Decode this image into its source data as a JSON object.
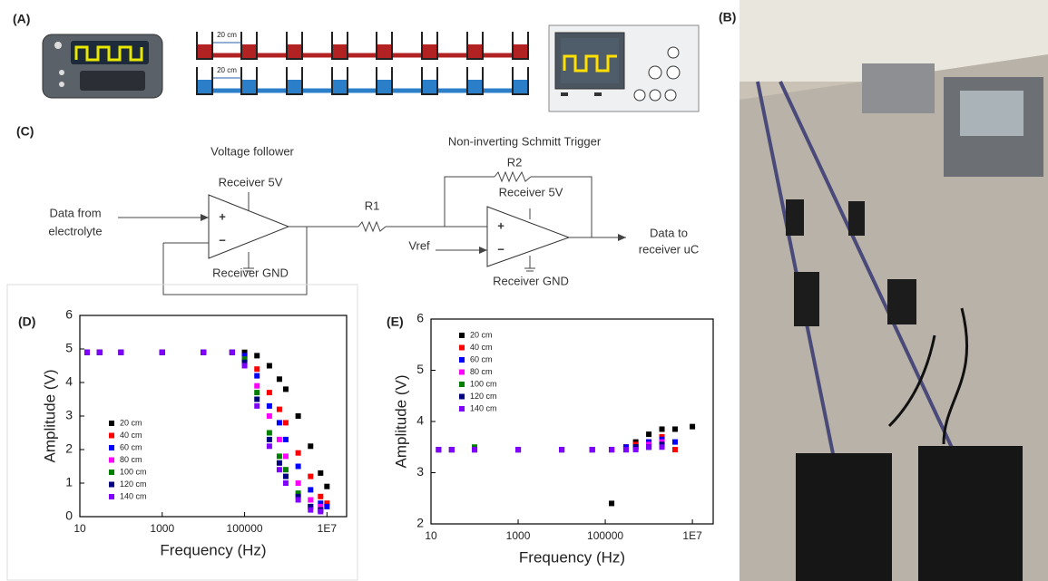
{
  "panel_labels": [
    "(A)",
    "(B)",
    "(C)",
    "(D)",
    "(E)"
  ],
  "panel_a": {
    "distance_labels": [
      "20 cm",
      "20 cm"
    ]
  },
  "circuit": {
    "voltage_follower": "Voltage follower",
    "schmitt": "Non-inverting Schmitt Trigger",
    "input": [
      "Data from",
      "electrolyte"
    ],
    "output": [
      "Data to",
      "receiver uC"
    ],
    "receiver_5v_1": "Receiver 5V",
    "receiver_gnd_1": "Receiver GND",
    "r1": "R1",
    "r2": "R2",
    "receiver_5v_2": "Receiver 5V",
    "vref": "Vref",
    "receiver_gnd_2": "Receiver GND",
    "signs": [
      "+",
      "−"
    ]
  },
  "chart_data": [
    {
      "type": "scatter",
      "x_label": "Frequency (Hz)",
      "y_label": "Amplitude (V)",
      "xscale": "log",
      "legend": "lower left",
      "xlim": [
        10,
        30000000
      ],
      "ylim": [
        0,
        6
      ],
      "xticks": [
        10,
        1000,
        100000,
        {
          "value": 10000000,
          "label": "1E7"
        }
      ],
      "yticks": [
        0,
        1,
        2,
        3,
        4,
        5,
        6
      ],
      "x": [
        15,
        30,
        100,
        1000,
        10000,
        50000,
        100000,
        200000,
        400000,
        700000,
        1000000,
        2000000,
        4000000,
        7000000,
        10000000
      ],
      "series": [
        {
          "name": "20 cm",
          "color": "#000000",
          "values": [
            4.9,
            4.9,
            4.9,
            4.9,
            4.9,
            4.9,
            4.9,
            4.8,
            4.5,
            4.1,
            3.8,
            3.0,
            2.1,
            1.3,
            0.9
          ]
        },
        {
          "name": "40 cm",
          "color": "#ff0000",
          "values": [
            4.9,
            4.9,
            4.9,
            4.9,
            4.9,
            4.9,
            4.8,
            4.4,
            3.7,
            3.2,
            2.8,
            1.9,
            1.2,
            0.6,
            0.4
          ]
        },
        {
          "name": "60 cm",
          "color": "#0000ff",
          "values": [
            4.9,
            4.9,
            4.9,
            4.9,
            4.9,
            4.9,
            4.8,
            4.2,
            3.3,
            2.8,
            2.3,
            1.5,
            0.8,
            0.4,
            0.3
          ]
        },
        {
          "name": "80 cm",
          "color": "#ff00ff",
          "values": [
            4.9,
            4.9,
            4.9,
            4.9,
            4.9,
            4.9,
            4.7,
            3.9,
            3.0,
            2.3,
            1.8,
            1.0,
            0.5,
            0.3,
            null
          ]
        },
        {
          "name": "100 cm",
          "color": "#008000",
          "values": [
            4.9,
            4.9,
            4.9,
            4.9,
            4.9,
            4.9,
            4.7,
            3.7,
            2.5,
            1.8,
            1.4,
            0.7,
            0.3,
            0.2,
            null
          ]
        },
        {
          "name": "120 cm",
          "color": "#000080",
          "values": [
            4.9,
            4.9,
            4.9,
            4.9,
            4.9,
            4.9,
            4.6,
            3.5,
            2.3,
            1.6,
            1.2,
            0.6,
            0.3,
            0.2,
            null
          ]
        },
        {
          "name": "140 cm",
          "color": "#8000ff",
          "values": [
            4.9,
            4.9,
            4.9,
            4.9,
            4.9,
            4.9,
            4.5,
            3.3,
            2.1,
            1.4,
            1.0,
            0.5,
            0.2,
            0.15,
            null
          ]
        }
      ]
    },
    {
      "type": "scatter",
      "x_label": "Frequency (Hz)",
      "y_label": "Amplitude (V)",
      "xscale": "log",
      "legend": "upper left",
      "xlim": [
        10,
        30000000
      ],
      "ylim": [
        2,
        6
      ],
      "xticks": [
        10,
        1000,
        100000,
        {
          "value": 10000000,
          "label": "1E7"
        }
      ],
      "yticks": [
        2,
        3,
        4,
        5,
        6
      ],
      "x": [
        15,
        30,
        100,
        1000,
        10000,
        50000,
        140000,
        300000,
        500000,
        1000000,
        2000000,
        4000000,
        10000000
      ],
      "series": [
        {
          "name": "20 cm",
          "color": "#000000",
          "values": [
            3.45,
            3.45,
            3.45,
            3.45,
            3.45,
            3.45,
            2.4,
            3.5,
            3.6,
            3.75,
            3.85,
            3.85,
            3.9
          ]
        },
        {
          "name": "40 cm",
          "color": "#ff0000",
          "values": [
            3.45,
            3.45,
            3.45,
            3.45,
            3.45,
            3.45,
            3.45,
            3.5,
            3.55,
            3.6,
            3.7,
            3.45,
            null
          ]
        },
        {
          "name": "60 cm",
          "color": "#0000ff",
          "values": [
            3.45,
            3.45,
            3.45,
            3.45,
            3.45,
            3.45,
            3.45,
            3.5,
            3.5,
            3.6,
            3.65,
            3.6,
            null
          ]
        },
        {
          "name": "80 cm",
          "color": "#ff00ff",
          "values": [
            3.45,
            3.45,
            3.45,
            3.45,
            3.45,
            3.45,
            3.45,
            3.45,
            3.5,
            3.55,
            3.6,
            null,
            null
          ]
        },
        {
          "name": "100 cm",
          "color": "#008000",
          "values": [
            3.45,
            3.45,
            3.5,
            3.45,
            3.45,
            3.45,
            3.45,
            3.45,
            3.5,
            3.5,
            3.55,
            null,
            null
          ]
        },
        {
          "name": "120 cm",
          "color": "#000080",
          "values": [
            3.45,
            3.45,
            3.45,
            3.45,
            3.45,
            3.45,
            3.45,
            3.45,
            3.5,
            3.5,
            3.55,
            null,
            null
          ]
        },
        {
          "name": "140 cm",
          "color": "#8000ff",
          "values": [
            3.45,
            3.45,
            3.45,
            3.45,
            3.45,
            3.45,
            3.45,
            3.45,
            3.45,
            3.5,
            3.5,
            null,
            null
          ]
        }
      ]
    }
  ]
}
